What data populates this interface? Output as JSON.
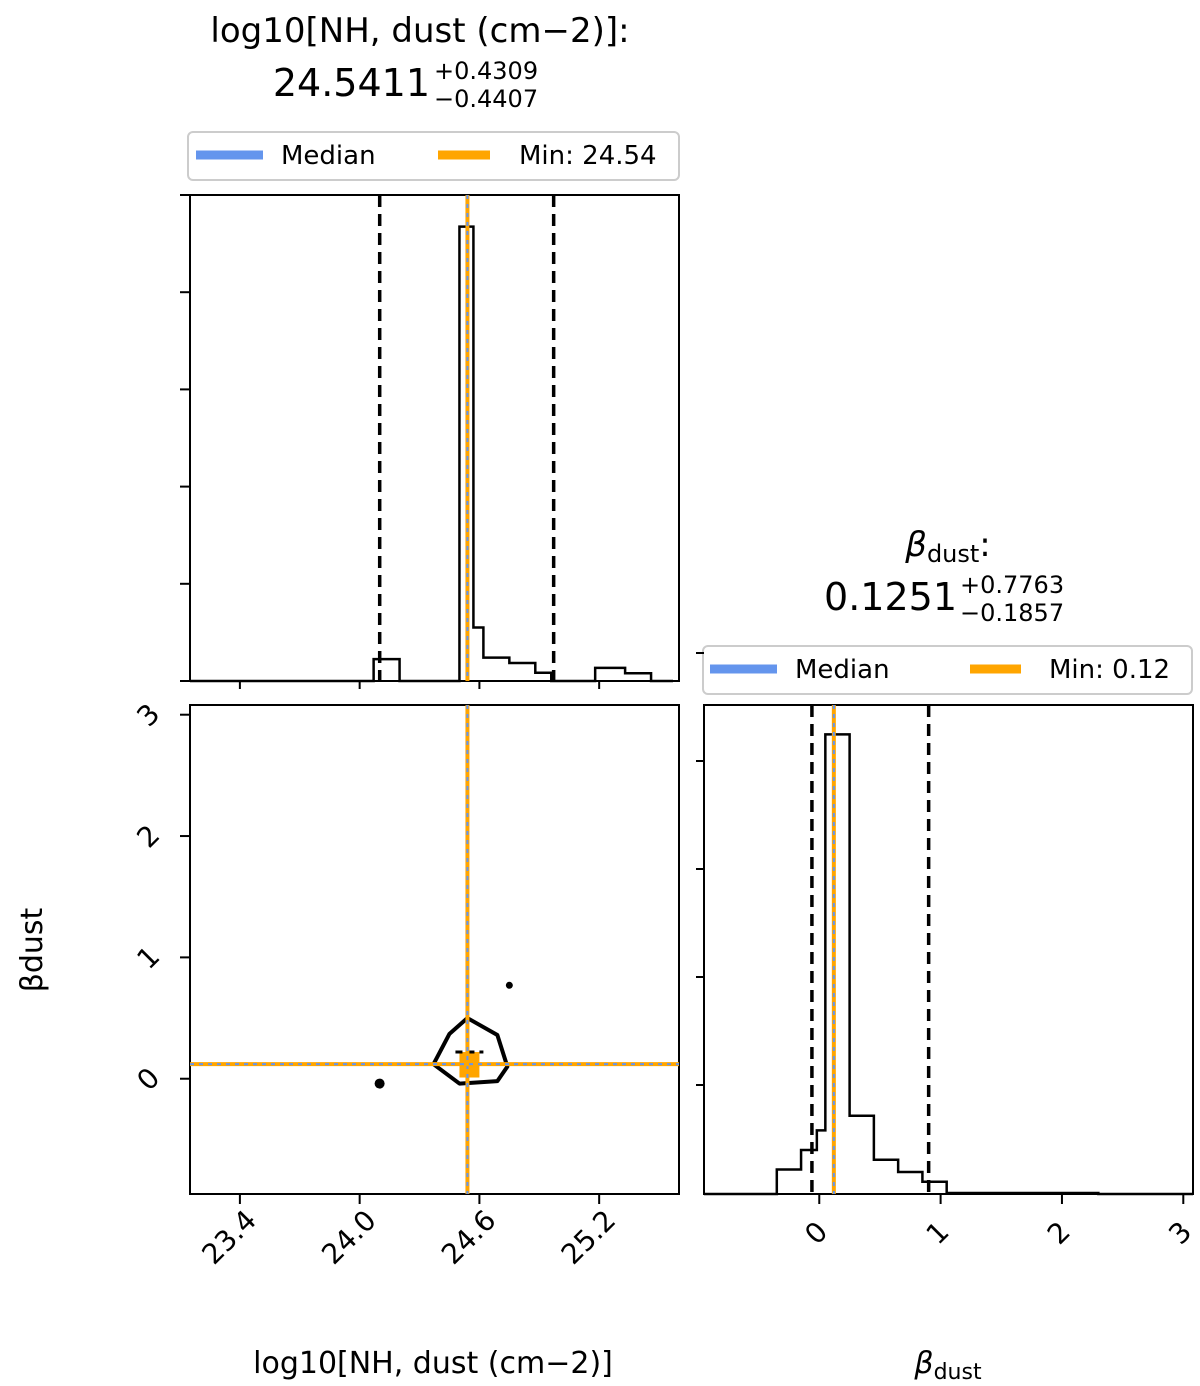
{
  "chart_data": [
    {
      "type": "histogram",
      "panel": "marginal-nh",
      "title_label": "log10[NH, dust (cm−2)]:",
      "title_value": "24.5411",
      "title_plus": "+0.4309",
      "title_minus": "−0.4407",
      "legend": [
        "Median",
        "Min: 24.54"
      ],
      "xlim": [
        23.15,
        25.6
      ],
      "median": 24.5411,
      "min": 24.54,
      "quantiles": [
        24.1004,
        24.972
      ],
      "bin_edges": [
        23.15,
        24.07,
        24.2,
        24.5,
        24.57,
        24.62,
        24.75,
        24.88,
        24.96,
        25.03,
        25.18,
        25.33,
        25.46,
        25.57
      ],
      "bin_values": [
        0,
        0.045,
        0,
        0.935,
        0.11,
        0.048,
        0.037,
        0.017,
        0,
        0,
        0.027,
        0.016,
        0
      ],
      "ylim": [
        0,
        1
      ]
    },
    {
      "type": "contour",
      "panel": "joint",
      "xlabel": "log10[NH, dust (cm−2)]",
      "ylabel": "βdust",
      "xlim": [
        23.15,
        25.6
      ],
      "ylim": [
        -0.95,
        3.08
      ],
      "xticks": [
        "23.4",
        "24.0",
        "24.6",
        "25.2"
      ],
      "yticks": [
        "0",
        "1",
        "2",
        "3"
      ],
      "median": [
        24.5411,
        0.1251
      ],
      "min": [
        24.54,
        0.12
      ],
      "contour": [
        [
          24.54,
          0.5
        ],
        [
          24.69,
          0.36
        ],
        [
          24.74,
          0.1
        ],
        [
          24.69,
          -0.02
        ],
        [
          24.5,
          -0.04
        ],
        [
          24.37,
          0.12
        ],
        [
          24.45,
          0.37
        ],
        [
          24.54,
          0.5
        ]
      ],
      "points": [
        [
          24.1,
          -0.04
        ],
        [
          24.75,
          0.77
        ]
      ],
      "bestfit_box": [
        [
          24.5,
          0.01
        ],
        [
          24.6,
          0.22
        ]
      ]
    },
    {
      "type": "histogram",
      "panel": "marginal-beta",
      "title_label": ":",
      "title_symbol": "β",
      "title_sub": "dust",
      "title_value": "0.1251",
      "title_plus": "+0.7763",
      "title_minus": "−0.1857",
      "legend": [
        "Median",
        "Min: 0.12"
      ],
      "xlabel": "βdust",
      "xlim": [
        -0.95,
        3.08
      ],
      "xticks": [
        "0",
        "1",
        "2",
        "3"
      ],
      "median": 0.1251,
      "min": 0.12,
      "quantiles": [
        -0.0606,
        0.9014
      ],
      "bin_edges": [
        -0.95,
        -0.35,
        -0.15,
        -0.02,
        0.05,
        0.25,
        0.45,
        0.65,
        0.85,
        1.05,
        2.3,
        3.08
      ],
      "bin_values": [
        0,
        0.05,
        0.09,
        0.13,
        0.94,
        0.16,
        0.07,
        0.045,
        0.025,
        0.002,
        0
      ],
      "ylim": [
        0,
        1
      ]
    }
  ],
  "colors": {
    "median": "#6495ED",
    "min": "#FFA500",
    "line": "#000000"
  }
}
